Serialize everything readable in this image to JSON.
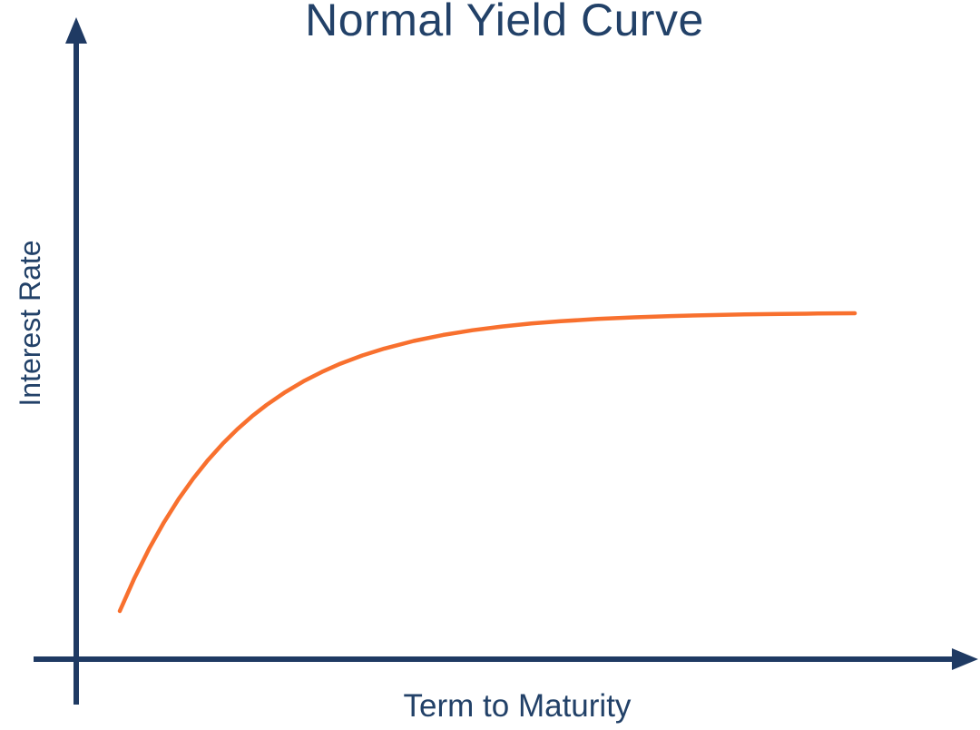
{
  "page": {
    "background": "#FFFFFF"
  },
  "chart": {
    "title": "Normal Yield Curve",
    "x_axis_label": "Term to Maturity",
    "y_axis_label": "Interest Rate",
    "colors": {
      "axis": "#1F3A63",
      "text": "#224168",
      "curve": "#F8702E"
    }
  },
  "chart_data": {
    "type": "line",
    "title": "Normal Yield Curve",
    "xlabel": "Term to Maturity",
    "ylabel": "Interest Rate",
    "axis_tick_labels": "none",
    "grid": false,
    "legend": "none",
    "x_arrow": true,
    "y_arrow": true,
    "xlim_norm": [
      0,
      1
    ],
    "ylim_norm": [
      0,
      1
    ],
    "series": [
      {
        "name": "Normal yield curve",
        "color": "#F8702E",
        "shape": "concave rising curve that saturates to a flat plateau, y = (1 - e^(-5.87x)) / 0.9972",
        "x": [
          0.0,
          0.02,
          0.04,
          0.06,
          0.08,
          0.1,
          0.12,
          0.14,
          0.16,
          0.18,
          0.2,
          0.225,
          0.25,
          0.275,
          0.3,
          0.33,
          0.36,
          0.4,
          0.44,
          0.48,
          0.52,
          0.56,
          0.6,
          0.65,
          0.7,
          0.75,
          0.8,
          0.85,
          0.9,
          0.95,
          1.0
        ],
        "y": [
          0.0,
          0.1111,
          0.2099,
          0.2977,
          0.3759,
          0.4452,
          0.507,
          0.562,
          0.6108,
          0.6543,
          0.6928,
          0.7351,
          0.7716,
          0.8032,
          0.8304,
          0.8582,
          0.8815,
          0.907,
          0.927,
          0.9429,
          0.9555,
          0.9654,
          0.9732,
          0.9807,
          0.9864,
          0.9905,
          0.9936,
          0.996,
          0.9977,
          0.999,
          1.0
        ]
      }
    ]
  }
}
